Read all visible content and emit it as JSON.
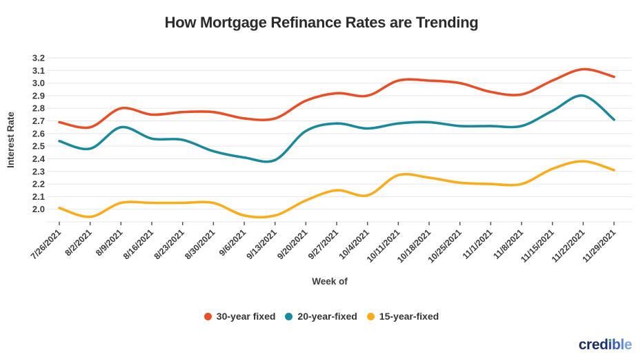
{
  "title": "How Mortgage Refinance Rates are Trending",
  "chart_data": {
    "type": "line",
    "x": [
      "7/26/2021",
      "8/2/2021",
      "8/9/2021",
      "8/16/2021",
      "8/23/2021",
      "8/30/2021",
      "9/6/2021",
      "9/13/2021",
      "9/20/2021",
      "9/27/2021",
      "10/4/2021",
      "10/11/2021",
      "10/18/2021",
      "10/25/2021",
      "11/1/2021",
      "11/8/2021",
      "11/15/2021",
      "11/22/2021",
      "11/29/2021"
    ],
    "series": [
      {
        "name": "30-year fixed",
        "color": "#EB4E24",
        "values": [
          2.69,
          2.65,
          2.8,
          2.75,
          2.77,
          2.77,
          2.72,
          2.72,
          2.86,
          2.92,
          2.9,
          3.02,
          3.02,
          3.0,
          2.93,
          2.91,
          3.02,
          3.11,
          3.05
        ]
      },
      {
        "name": "20-year-fixed",
        "color": "#19899C",
        "values": [
          2.54,
          2.48,
          2.65,
          2.56,
          2.55,
          2.46,
          2.41,
          2.39,
          2.62,
          2.68,
          2.64,
          2.68,
          2.69,
          2.66,
          2.66,
          2.66,
          2.78,
          2.9,
          2.71
        ]
      },
      {
        "name": "15-year-fixed",
        "color": "#FBAC18",
        "values": [
          2.01,
          1.94,
          2.05,
          2.05,
          2.05,
          2.05,
          1.95,
          1.95,
          2.07,
          2.15,
          2.11,
          2.27,
          2.25,
          2.21,
          2.2,
          2.2,
          2.32,
          2.38,
          2.31
        ]
      }
    ],
    "xlabel": "Week of",
    "ylabel": "Interest Rate",
    "yticks": [
      "3.2",
      "3.1",
      "3.0",
      "2.9",
      "2.8",
      "2.7",
      "2.6",
      "2.5",
      "2.4",
      "2.3",
      "2.2",
      "2.1",
      "2.0"
    ],
    "ylim": [
      1.9,
      3.2
    ],
    "grid": true,
    "gridline_color": "#E6E6E6",
    "tick_mark_color": "#555555",
    "legend_position": "bottom"
  },
  "logo": {
    "text": "credible",
    "letter_colors": [
      "#1B2A6B",
      "#1B2A6B",
      "#1B2A6B",
      "#1F3076",
      "#2E4796",
      "#3D5FB8",
      "#5B82D6",
      "#7AA2E8"
    ],
    "i_dot_color": "#37B34A"
  }
}
